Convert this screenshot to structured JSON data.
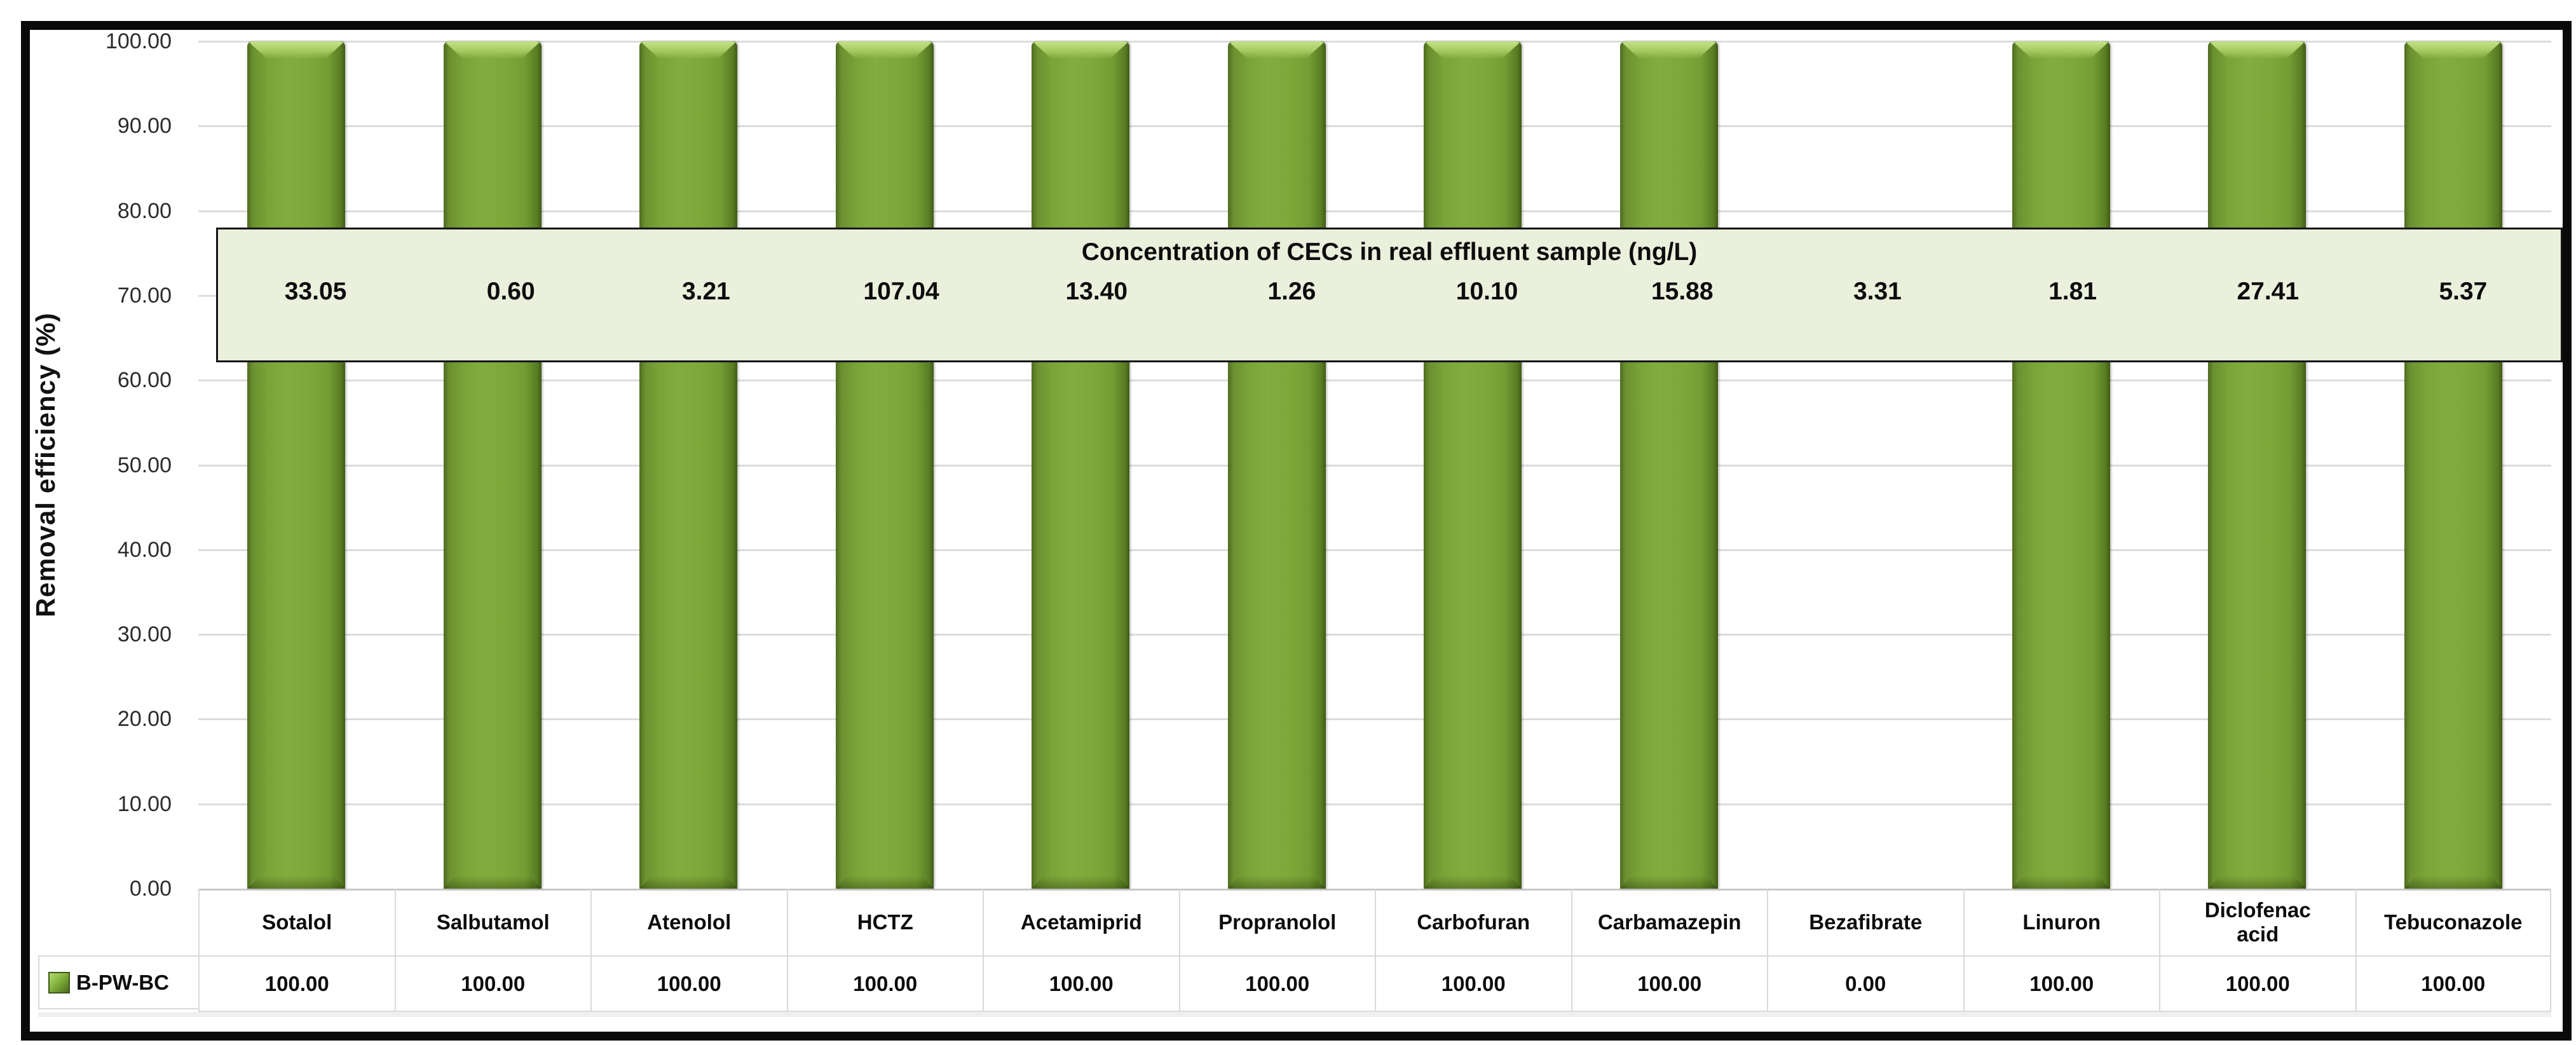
{
  "colors": {
    "bar_fill": "#77A136",
    "bar_highlight": "#A6CD63",
    "bar_edge_dark": "#415A16",
    "annotation_background": "#EAF0DC",
    "annotation_border": "#141414",
    "gridline": "#DCDCDC",
    "table_border": "#D9D9D9",
    "frame_border": "#0A0A0A"
  },
  "chart_data": {
    "type": "bar",
    "title": "",
    "xlabel": "",
    "ylabel": "Removal efficiency (%)",
    "ylim": [
      0,
      100
    ],
    "ytick_step": 10,
    "y_tick_labels": [
      "100.00",
      "90.00",
      "80.00",
      "70.00",
      "60.00",
      "50.00",
      "40.00",
      "30.00",
      "20.00",
      "10.00",
      "0.00"
    ],
    "grid": true,
    "legend_position": "bottom-left data-table key",
    "categories": [
      "Sotalol",
      "Salbutamol",
      "Atenolol",
      "HCTZ",
      "Acetamiprid",
      "Propranolol",
      "Carbofuran",
      "Carbamazepin",
      "Bezafibrate",
      "Linuron",
      "Diclofenac acid",
      "Tebuconazole"
    ],
    "series": [
      {
        "name": "B-PW-BC",
        "values": [
          100.0,
          100.0,
          100.0,
          100.0,
          100.0,
          100.0,
          100.0,
          100.0,
          0.0,
          100.0,
          100.0,
          100.0
        ]
      }
    ],
    "annotation_box": {
      "title": "Concentration of CECs in real effluent sample (ng/L)",
      "values": [
        "33.05",
        "0.60",
        "3.21",
        "107.04",
        "13.40",
        "1.26",
        "10.10",
        "15.88",
        "3.31",
        "1.81",
        "27.41",
        "5.37"
      ],
      "y_span_percent": [
        62.5,
        78.5
      ]
    },
    "data_table": {
      "row_label": "B-PW-BC",
      "values": [
        "100.00",
        "100.00",
        "100.00",
        "100.00",
        "100.00",
        "100.00",
        "100.00",
        "100.00",
        "0.00",
        "100.00",
        "100.00",
        "100.00"
      ]
    }
  }
}
